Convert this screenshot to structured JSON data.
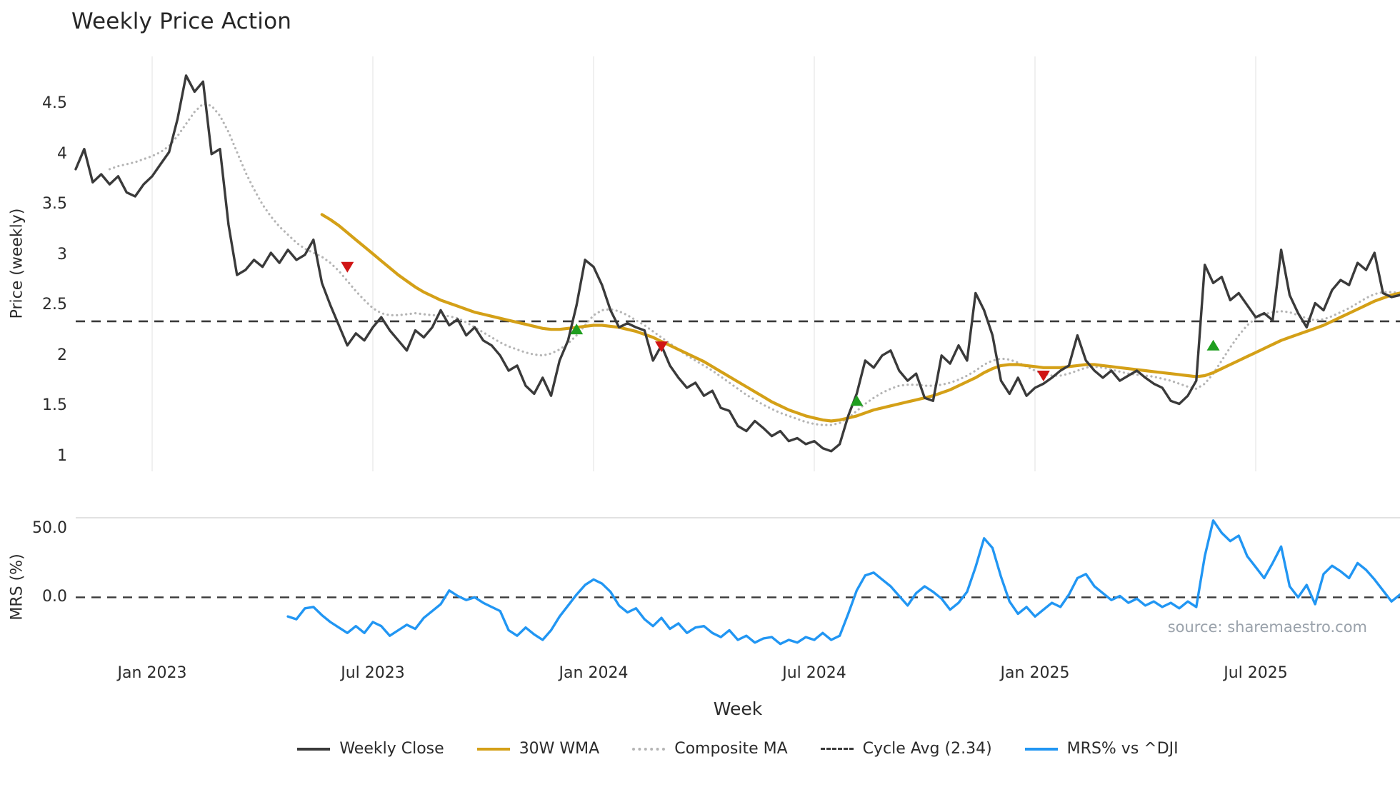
{
  "title": "Weekly Price Action",
  "xlabel": "Week",
  "source_note": "source: sharemaestro.com",
  "colors": {
    "weekly_close": "#3a3a3a",
    "wma_30w": "#d4a017",
    "composite_ma": "#b5b5b5",
    "cycle_avg": "#3a3a3a",
    "mrs": "#2196f3",
    "buy_signal": "#1f9e1f",
    "sell_signal": "#d01515",
    "gridline": "#ececec",
    "panel_spine": "#d9d9d9",
    "muted_text": "#9aa2ab"
  },
  "legend": {
    "items": [
      {
        "label": "Weekly Close",
        "color": "#3a3a3a",
        "style": "solid"
      },
      {
        "label": "30W WMA",
        "color": "#d4a017",
        "style": "solid"
      },
      {
        "label": "Composite MA",
        "color": "#b5b5b5",
        "style": "dotted"
      },
      {
        "label": "Cycle Avg (2.34)",
        "color": "#3a3a3a",
        "style": "dashed"
      },
      {
        "label": "MRS% vs ^DJI",
        "color": "#2196f3",
        "style": "solid"
      }
    ]
  },
  "x_axis": {
    "tick_labels": [
      "Jan 2023",
      "Jul 2023",
      "Jan 2024",
      "Jul 2024",
      "Jan 2025",
      "Jul 2025"
    ],
    "tick_weeks": [
      9,
      35,
      61,
      87,
      113,
      139
    ],
    "total_weeks": 157
  },
  "chart_data": [
    {
      "panel": "price",
      "type": "line",
      "ylabel": "Price (weekly)",
      "ylim": [
        0.85,
        4.97
      ],
      "ytick_values": [
        4.5,
        4,
        3.5,
        3,
        2.5,
        2,
        1.5,
        1
      ],
      "ytick_labels": [
        "4.5",
        "4",
        "3.5",
        "3",
        "2.5",
        "2",
        "1.5",
        "1"
      ],
      "grid": "vertical",
      "hline": {
        "name": "Cycle Avg (2.34)",
        "value": 2.34,
        "color": "#3a3a3a",
        "style": "dashed",
        "width": 2.6
      },
      "series": [
        {
          "name": "Weekly Close",
          "color": "#3a3a3a",
          "style": "solid",
          "width": 3.4,
          "start_week": 0,
          "values": [
            3.85,
            4.05,
            3.72,
            3.8,
            3.7,
            3.78,
            3.62,
            3.58,
            3.7,
            3.78,
            3.9,
            4.02,
            4.35,
            4.78,
            4.62,
            4.72,
            4.0,
            4.05,
            3.3,
            2.8,
            2.85,
            2.95,
            2.88,
            3.02,
            2.92,
            3.05,
            2.95,
            3.0,
            3.15,
            2.72,
            2.5,
            2.3,
            2.1,
            2.22,
            2.15,
            2.28,
            2.38,
            2.25,
            2.15,
            2.05,
            2.25,
            2.18,
            2.28,
            2.45,
            2.3,
            2.36,
            2.2,
            2.28,
            2.15,
            2.1,
            2.0,
            1.85,
            1.9,
            1.7,
            1.62,
            1.78,
            1.6,
            1.95,
            2.15,
            2.5,
            2.95,
            2.88,
            2.7,
            2.45,
            2.28,
            2.32,
            2.28,
            2.25,
            1.95,
            2.1,
            1.9,
            1.78,
            1.68,
            1.73,
            1.6,
            1.65,
            1.48,
            1.45,
            1.3,
            1.25,
            1.35,
            1.28,
            1.2,
            1.25,
            1.15,
            1.18,
            1.12,
            1.15,
            1.08,
            1.05,
            1.12,
            1.4,
            1.62,
            1.95,
            1.88,
            2.0,
            2.05,
            1.85,
            1.75,
            1.82,
            1.58,
            1.55,
            2.0,
            1.92,
            2.1,
            1.95,
            2.62,
            2.45,
            2.2,
            1.75,
            1.62,
            1.78,
            1.6,
            1.68,
            1.72,
            1.78,
            1.85,
            1.9,
            2.2,
            1.95,
            1.85,
            1.78,
            1.85,
            1.75,
            1.8,
            1.85,
            1.78,
            1.72,
            1.68,
            1.55,
            1.52,
            1.6,
            1.75,
            2.9,
            2.72,
            2.78,
            2.55,
            2.62,
            2.5,
            2.38,
            2.42,
            2.35,
            3.05,
            2.6,
            2.42,
            2.28,
            2.52,
            2.45,
            2.65,
            2.75,
            2.7,
            2.92,
            2.85,
            3.02,
            2.62,
            2.58,
            2.6
          ]
        },
        {
          "name": "30W WMA",
          "color": "#d4a017",
          "style": "solid",
          "width": 4.2,
          "start_week": 29,
          "values": [
            3.4,
            3.35,
            3.29,
            3.22,
            3.15,
            3.08,
            3.01,
            2.94,
            2.87,
            2.8,
            2.74,
            2.68,
            2.63,
            2.59,
            2.55,
            2.52,
            2.49,
            2.46,
            2.43,
            2.41,
            2.39,
            2.37,
            2.35,
            2.33,
            2.31,
            2.29,
            2.27,
            2.26,
            2.26,
            2.27,
            2.28,
            2.29,
            2.3,
            2.3,
            2.29,
            2.28,
            2.26,
            2.24,
            2.21,
            2.18,
            2.14,
            2.1,
            2.06,
            2.02,
            1.98,
            1.94,
            1.89,
            1.84,
            1.79,
            1.74,
            1.69,
            1.64,
            1.59,
            1.54,
            1.5,
            1.46,
            1.43,
            1.4,
            1.38,
            1.36,
            1.35,
            1.36,
            1.38,
            1.4,
            1.43,
            1.46,
            1.48,
            1.5,
            1.52,
            1.54,
            1.56,
            1.58,
            1.6,
            1.63,
            1.66,
            1.7,
            1.74,
            1.78,
            1.83,
            1.87,
            1.9,
            1.91,
            1.91,
            1.9,
            1.89,
            1.88,
            1.88,
            1.88,
            1.89,
            1.9,
            1.91,
            1.91,
            1.9,
            1.89,
            1.88,
            1.87,
            1.86,
            1.85,
            1.84,
            1.83,
            1.82,
            1.81,
            1.8,
            1.79,
            1.8,
            1.83,
            1.87,
            1.91,
            1.95,
            1.99,
            2.03,
            2.07,
            2.11,
            2.15,
            2.18,
            2.21,
            2.24,
            2.27,
            2.3,
            2.34,
            2.38,
            2.42,
            2.46,
            2.5,
            2.54,
            2.57,
            2.6,
            2.62
          ]
        },
        {
          "name": "Composite MA",
          "color": "#b5b5b5",
          "style": "dotted",
          "width": 3.2,
          "start_week": 4,
          "values": [
            3.85,
            3.88,
            3.9,
            3.92,
            3.95,
            3.98,
            4.02,
            4.08,
            4.18,
            4.3,
            4.42,
            4.5,
            4.48,
            4.38,
            4.22,
            4.02,
            3.82,
            3.65,
            3.5,
            3.38,
            3.28,
            3.2,
            3.12,
            3.06,
            3.02,
            2.98,
            2.92,
            2.84,
            2.74,
            2.64,
            2.55,
            2.47,
            2.42,
            2.4,
            2.4,
            2.41,
            2.42,
            2.41,
            2.4,
            2.4,
            2.39,
            2.37,
            2.33,
            2.28,
            2.23,
            2.18,
            2.13,
            2.09,
            2.06,
            2.03,
            2.01,
            2.0,
            2.02,
            2.06,
            2.12,
            2.2,
            2.3,
            2.4,
            2.45,
            2.46,
            2.44,
            2.4,
            2.35,
            2.3,
            2.24,
            2.18,
            2.12,
            2.06,
            2.0,
            1.95,
            1.9,
            1.85,
            1.79,
            1.73,
            1.67,
            1.61,
            1.56,
            1.51,
            1.47,
            1.43,
            1.4,
            1.37,
            1.34,
            1.32,
            1.31,
            1.31,
            1.33,
            1.38,
            1.45,
            1.52,
            1.58,
            1.63,
            1.67,
            1.7,
            1.71,
            1.71,
            1.7,
            1.7,
            1.71,
            1.73,
            1.76,
            1.8,
            1.85,
            1.91,
            1.95,
            1.97,
            1.96,
            1.93,
            1.89,
            1.85,
            1.82,
            1.8,
            1.8,
            1.82,
            1.85,
            1.88,
            1.89,
            1.88,
            1.86,
            1.84,
            1.82,
            1.81,
            1.8,
            1.79,
            1.77,
            1.75,
            1.72,
            1.69,
            1.67,
            1.72,
            1.82,
            1.95,
            2.08,
            2.2,
            2.3,
            2.37,
            2.41,
            2.43,
            2.44,
            2.43,
            2.4,
            2.37,
            2.35,
            2.36,
            2.39,
            2.43,
            2.47,
            2.52,
            2.57,
            2.61,
            2.63,
            2.63,
            2.62
          ]
        }
      ],
      "markers": {
        "sell": {
          "shape": "triangle-down",
          "color": "#d01515",
          "points": [
            [
              32,
              2.88
            ],
            [
              69,
              2.09
            ],
            [
              114,
              1.8
            ]
          ]
        },
        "buy": {
          "shape": "triangle-up",
          "color": "#1f9e1f",
          "points": [
            [
              59,
              2.26
            ],
            [
              92,
              1.55
            ],
            [
              134,
              2.1
            ]
          ]
        }
      }
    },
    {
      "panel": "mrs",
      "type": "line",
      "ylabel": "MRS (%)",
      "ylim": [
        -43,
        58
      ],
      "ytick_values": [
        50,
        0
      ],
      "ytick_labels": [
        "50.0",
        "0.0"
      ],
      "grid": "none",
      "hline": {
        "name": "zero line",
        "value": 0,
        "color": "#3a3a3a",
        "style": "dashed",
        "width": 2.4
      },
      "series": [
        {
          "name": "MRS% vs ^DJI",
          "color": "#2196f3",
          "style": "solid",
          "width": 3.4,
          "start_week": 25,
          "values": [
            -14,
            -16,
            -8,
            -7,
            -13,
            -18,
            -22,
            -26,
            -21,
            -26,
            -18,
            -21,
            -28,
            -24,
            -20,
            -23,
            -15,
            -10,
            -5,
            5,
            1,
            -2,
            0,
            -4,
            -7,
            -10,
            -24,
            -28,
            -22,
            -27,
            -31,
            -24,
            -14,
            -6,
            2,
            9,
            13,
            10,
            4,
            -6,
            -11,
            -8,
            -16,
            -21,
            -15,
            -23,
            -19,
            -26,
            -22,
            -21,
            -26,
            -29,
            -24,
            -31,
            -28,
            -33,
            -30,
            -29,
            -34,
            -31,
            -33,
            -29,
            -31,
            -26,
            -31,
            -28,
            -12,
            5,
            16,
            18,
            13,
            8,
            1,
            -6,
            3,
            8,
            4,
            -1,
            -9,
            -4,
            4,
            22,
            43,
            36,
            15,
            -3,
            -12,
            -7,
            -14,
            -9,
            -4,
            -7,
            2,
            14,
            17,
            8,
            3,
            -2,
            1,
            -4,
            -1,
            -6,
            -3,
            -7,
            -4,
            -8,
            -3,
            -7,
            30,
            56,
            47,
            41,
            45,
            30,
            22,
            14,
            25,
            37,
            8,
            0,
            9,
            -5,
            17,
            23,
            19,
            14,
            25,
            20,
            13,
            5,
            -3,
            2
          ]
        }
      ]
    }
  ]
}
